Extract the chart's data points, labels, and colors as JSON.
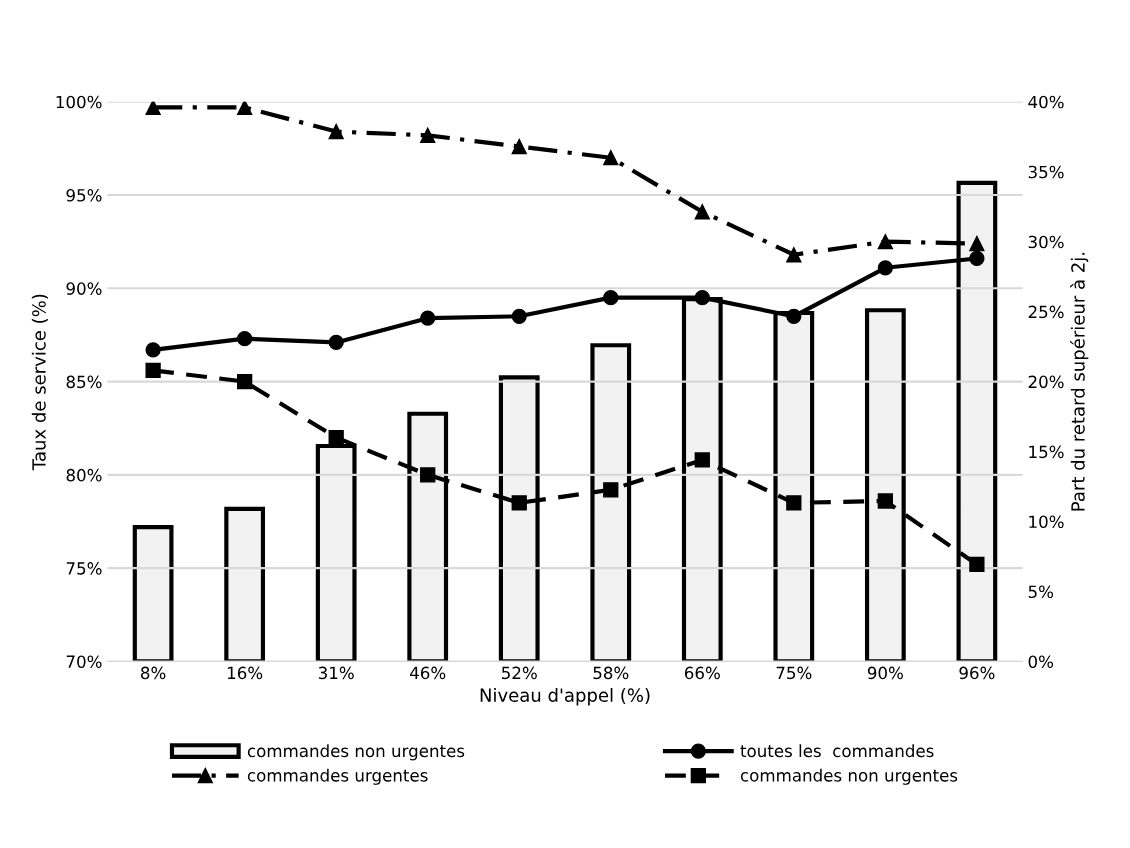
{
  "chart_data": {
    "type": "line",
    "xlabel": "Niveau d'appel (%)",
    "ylabel": "Taux de service (%)",
    "y2label": "Part du retard supérieur à 2j.",
    "categories": [
      "8%",
      "16%",
      "31%",
      "46%",
      "52%",
      "58%",
      "66%",
      "75%",
      "90%",
      "96%"
    ],
    "series": [
      {
        "name": "commandes non urgentes",
        "type": "bar",
        "axis": "y2",
        "color": "#f2f2f2",
        "values": [
          9.6,
          10.9,
          15.4,
          17.7,
          20.3,
          22.6,
          25.9,
          24.9,
          25.1,
          34.2
        ]
      },
      {
        "name": "toutes les  commandes",
        "axis": "y",
        "color": "#000000",
        "marker": "circle",
        "line_style": "solid",
        "values": [
          86.7,
          87.3,
          87.1,
          88.4,
          88.5,
          89.5,
          89.5,
          88.5,
          91.1,
          91.6
        ]
      },
      {
        "name": "commandes urgentes",
        "axis": "y",
        "color": "#000000",
        "marker": "triangle",
        "line_style": "dashdot",
        "values": [
          99.7,
          99.7,
          98.4,
          98.2,
          97.6,
          97.0,
          94.1,
          91.8,
          92.5,
          92.4
        ]
      },
      {
        "name": "commandes non urgentes",
        "axis": "y",
        "color": "#000000",
        "marker": "square",
        "line_style": "dashed",
        "values": [
          85.6,
          85.0,
          82.0,
          80.0,
          78.5,
          79.2,
          80.8,
          78.5,
          78.6,
          75.2
        ]
      }
    ],
    "ylim": [
      70,
      100
    ],
    "yticks": [
      {
        "value": 70,
        "label": "70%"
      },
      {
        "value": 75,
        "label": "75%"
      },
      {
        "value": 80,
        "label": "80%"
      },
      {
        "value": 85,
        "label": "85%"
      },
      {
        "value": 90,
        "label": "90%"
      },
      {
        "value": 95,
        "label": "95%"
      },
      {
        "value": 100,
        "label": "100%"
      }
    ],
    "y2lim": [
      0,
      40
    ],
    "y2ticks": [
      {
        "value": 0,
        "label": "0%"
      },
      {
        "value": 5,
        "label": "5%"
      },
      {
        "value": 10,
        "label": "10%"
      },
      {
        "value": 15,
        "label": "15%"
      },
      {
        "value": 20,
        "label": "20%"
      },
      {
        "value": 25,
        "label": "25%"
      },
      {
        "value": 30,
        "label": "30%"
      },
      {
        "value": 35,
        "label": "35%"
      },
      {
        "value": 40,
        "label": "40%"
      }
    ],
    "grid": "y",
    "legend": "bottom"
  }
}
